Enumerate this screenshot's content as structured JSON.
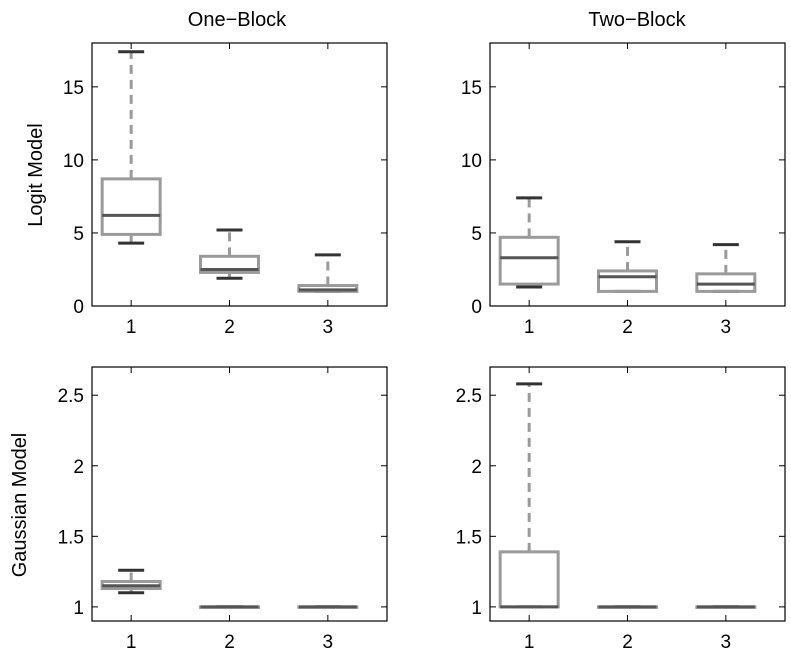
{
  "figure": {
    "column_titles": [
      "One−Block",
      "Two−Block"
    ],
    "row_labels": [
      "Logit Model",
      "Gaussian Model"
    ]
  },
  "colors": {
    "box": "#9a9a9a",
    "whisker": "#9a9a9a",
    "median": "#555555",
    "whisker_cap": "#333333",
    "axes": "#000000"
  },
  "chart_data": [
    {
      "type": "box",
      "title": "One−Block",
      "ylabel": "Logit Model",
      "categories": [
        "1",
        "2",
        "3"
      ],
      "ylim": [
        0,
        18
      ],
      "yticks": [
        0,
        5,
        10,
        15
      ],
      "yticklabels": [
        "0",
        "5",
        "10",
        "15"
      ],
      "boxes": [
        {
          "min": 4.3,
          "q1": 4.9,
          "median": 6.2,
          "q3": 8.7,
          "max": 17.4
        },
        {
          "min": 1.9,
          "q1": 2.3,
          "median": 2.5,
          "q3": 3.4,
          "max": 5.2
        },
        {
          "min": 1.0,
          "q1": 1.0,
          "median": 1.1,
          "q3": 1.4,
          "max": 3.5
        }
      ]
    },
    {
      "type": "box",
      "title": "Two−Block",
      "ylabel": "",
      "categories": [
        "1",
        "2",
        "3"
      ],
      "ylim": [
        0,
        18
      ],
      "yticks": [
        0,
        5,
        10,
        15
      ],
      "yticklabels": [
        "0",
        "5",
        "10",
        "15"
      ],
      "boxes": [
        {
          "min": 1.3,
          "q1": 1.5,
          "median": 3.3,
          "q3": 4.7,
          "max": 7.4
        },
        {
          "min": 1.0,
          "q1": 1.0,
          "median": 2.0,
          "q3": 2.4,
          "max": 4.4
        },
        {
          "min": 1.0,
          "q1": 1.0,
          "median": 1.5,
          "q3": 2.2,
          "max": 4.2
        }
      ]
    },
    {
      "type": "box",
      "title": "",
      "ylabel": "Gaussian Model",
      "categories": [
        "1",
        "2",
        "3"
      ],
      "ylim": [
        0.9,
        2.7
      ],
      "yticks": [
        1,
        1.5,
        2,
        2.5
      ],
      "yticklabels": [
        "1",
        "1.5",
        "2",
        "2.5"
      ],
      "boxes": [
        {
          "min": 1.1,
          "q1": 1.13,
          "median": 1.15,
          "q3": 1.18,
          "max": 1.26
        },
        {
          "min": 1.0,
          "q1": 1.0,
          "median": 1.0,
          "q3": 1.0,
          "max": 1.0
        },
        {
          "min": 1.0,
          "q1": 1.0,
          "median": 1.0,
          "q3": 1.0,
          "max": 1.0
        }
      ]
    },
    {
      "type": "box",
      "title": "",
      "ylabel": "",
      "categories": [
        "1",
        "2",
        "3"
      ],
      "ylim": [
        0.9,
        2.7
      ],
      "yticks": [
        1,
        1.5,
        2,
        2.5
      ],
      "yticklabels": [
        "1",
        "1.5",
        "2",
        "2.5"
      ],
      "boxes": [
        {
          "min": 1.0,
          "q1": 1.0,
          "median": 1.0,
          "q3": 1.39,
          "max": 2.58
        },
        {
          "min": 1.0,
          "q1": 1.0,
          "median": 1.0,
          "q3": 1.0,
          "max": 1.0
        },
        {
          "min": 1.0,
          "q1": 1.0,
          "median": 1.0,
          "q3": 1.0,
          "max": 1.0
        }
      ]
    }
  ]
}
